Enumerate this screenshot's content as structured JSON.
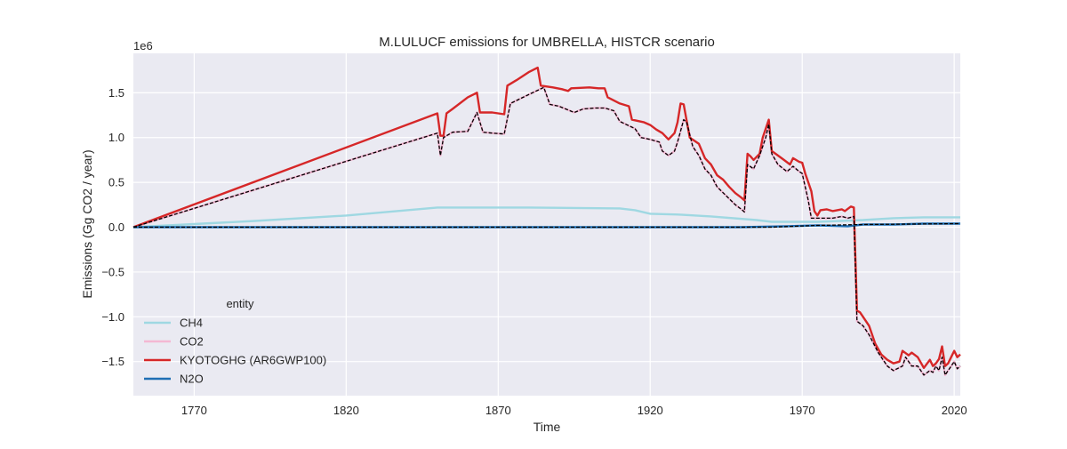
{
  "chart_data": {
    "type": "line",
    "title": "M.LULUCF emissions for UMBRELLA, HISTCR scenario",
    "xlabel": "Time",
    "ylabel": "Emissions (Gg CO2 / year)",
    "y_offset_label": "1e6",
    "y_scale": 1000000,
    "xlim": [
      1750,
      2022
    ],
    "ylim": [
      -1.88,
      1.94
    ],
    "x_ticks": [
      1770,
      1820,
      1870,
      1920,
      1970,
      2020
    ],
    "y_ticks": [
      -1.5,
      -1.0,
      -0.5,
      0.0,
      0.5,
      1.0,
      1.5
    ],
    "y_tick_labels": [
      "−1.5",
      "−1.0",
      "−0.5",
      "0.0",
      "0.5",
      "1.0",
      "1.5"
    ],
    "grid": true,
    "legend": {
      "title": "entity",
      "placement": "lower-left"
    },
    "series": [
      {
        "name": "CH4",
        "color": "#9fd8e2",
        "style": "solid",
        "points": [
          [
            1750,
            0.0
          ],
          [
            1790,
            0.07
          ],
          [
            1820,
            0.13
          ],
          [
            1850,
            0.22
          ],
          [
            1880,
            0.22
          ],
          [
            1910,
            0.21
          ],
          [
            1915,
            0.19
          ],
          [
            1920,
            0.15
          ],
          [
            1930,
            0.14
          ],
          [
            1940,
            0.12
          ],
          [
            1955,
            0.08
          ],
          [
            1960,
            0.06
          ],
          [
            1975,
            0.06
          ],
          [
            1990,
            0.08
          ],
          [
            2000,
            0.1
          ],
          [
            2010,
            0.11
          ],
          [
            2022,
            0.11
          ]
        ]
      },
      {
        "name": "CO2",
        "color": "#f4b8d3",
        "style": "solid",
        "points": [
          [
            1750,
            0.0
          ],
          [
            1850,
            1.05
          ],
          [
            1851,
            0.8
          ],
          [
            1852,
            1.0
          ],
          [
            1855,
            1.06
          ],
          [
            1860,
            1.07
          ],
          [
            1863,
            1.28
          ],
          [
            1865,
            1.06
          ],
          [
            1868,
            1.05
          ],
          [
            1872,
            1.04
          ],
          [
            1874,
            1.38
          ],
          [
            1880,
            1.48
          ],
          [
            1885,
            1.56
          ],
          [
            1887,
            1.37
          ],
          [
            1890,
            1.35
          ],
          [
            1895,
            1.28
          ],
          [
            1898,
            1.32
          ],
          [
            1902,
            1.33
          ],
          [
            1905,
            1.33
          ],
          [
            1908,
            1.3
          ],
          [
            1910,
            1.18
          ],
          [
            1915,
            1.1
          ],
          [
            1917,
            1.0
          ],
          [
            1920,
            0.98
          ],
          [
            1923,
            0.95
          ],
          [
            1924,
            0.85
          ],
          [
            1926,
            0.8
          ],
          [
            1928,
            0.85
          ],
          [
            1929,
            0.95
          ],
          [
            1931,
            1.2
          ],
          [
            1932,
            1.17
          ],
          [
            1934,
            0.9
          ],
          [
            1936,
            0.8
          ],
          [
            1938,
            0.65
          ],
          [
            1940,
            0.58
          ],
          [
            1942,
            0.45
          ],
          [
            1945,
            0.35
          ],
          [
            1948,
            0.25
          ],
          [
            1950,
            0.2
          ],
          [
            1951,
            0.17
          ],
          [
            1952,
            0.7
          ],
          [
            1954,
            0.65
          ],
          [
            1956,
            0.8
          ],
          [
            1958,
            1.0
          ],
          [
            1959,
            1.15
          ],
          [
            1960,
            0.82
          ],
          [
            1962,
            0.7
          ],
          [
            1965,
            0.62
          ],
          [
            1967,
            0.68
          ],
          [
            1969,
            0.62
          ],
          [
            1970,
            0.6
          ],
          [
            1972,
            0.3
          ],
          [
            1973,
            0.1
          ],
          [
            1975,
            0.1
          ],
          [
            1978,
            0.1
          ],
          [
            1980,
            0.1
          ],
          [
            1983,
            0.12
          ],
          [
            1985,
            0.1
          ],
          [
            1987,
            0.12
          ],
          [
            1988,
            -1.05
          ],
          [
            1990,
            -1.1
          ],
          [
            1992,
            -1.2
          ],
          [
            1995,
            -1.4
          ],
          [
            1998,
            -1.55
          ],
          [
            2000,
            -1.6
          ],
          [
            2003,
            -1.55
          ],
          [
            2004,
            -1.45
          ],
          [
            2006,
            -1.55
          ],
          [
            2008,
            -1.55
          ],
          [
            2010,
            -1.65
          ],
          [
            2012,
            -1.6
          ],
          [
            2013,
            -1.62
          ],
          [
            2014,
            -1.55
          ],
          [
            2015,
            -1.6
          ],
          [
            2016,
            -1.45
          ],
          [
            2017,
            -1.65
          ],
          [
            2018,
            -1.6
          ],
          [
            2020,
            -1.5
          ],
          [
            2021,
            -1.58
          ],
          [
            2022,
            -1.55
          ]
        ]
      },
      {
        "name": "KYOTOGHG (AR6GWP100)",
        "color": "#d62728",
        "style": "solid",
        "points": [
          [
            1750,
            0.0
          ],
          [
            1850,
            1.27
          ],
          [
            1851,
            1.02
          ],
          [
            1852,
            1.02
          ],
          [
            1853,
            1.27
          ],
          [
            1855,
            1.32
          ],
          [
            1860,
            1.45
          ],
          [
            1863,
            1.5
          ],
          [
            1864,
            1.28
          ],
          [
            1868,
            1.28
          ],
          [
            1872,
            1.26
          ],
          [
            1873,
            1.58
          ],
          [
            1876,
            1.64
          ],
          [
            1880,
            1.73
          ],
          [
            1883,
            1.78
          ],
          [
            1884,
            1.58
          ],
          [
            1888,
            1.56
          ],
          [
            1891,
            1.54
          ],
          [
            1893,
            1.52
          ],
          [
            1894,
            1.55
          ],
          [
            1900,
            1.56
          ],
          [
            1903,
            1.55
          ],
          [
            1905,
            1.55
          ],
          [
            1906,
            1.45
          ],
          [
            1910,
            1.38
          ],
          [
            1913,
            1.35
          ],
          [
            1914,
            1.2
          ],
          [
            1918,
            1.17
          ],
          [
            1920,
            1.14
          ],
          [
            1922,
            1.09
          ],
          [
            1924,
            1.05
          ],
          [
            1926,
            0.98
          ],
          [
            1928,
            1.05
          ],
          [
            1929,
            1.17
          ],
          [
            1930,
            1.38
          ],
          [
            1931,
            1.37
          ],
          [
            1933,
            1.0
          ],
          [
            1936,
            0.93
          ],
          [
            1938,
            0.77
          ],
          [
            1940,
            0.7
          ],
          [
            1942,
            0.58
          ],
          [
            1944,
            0.53
          ],
          [
            1946,
            0.45
          ],
          [
            1948,
            0.38
          ],
          [
            1950,
            0.33
          ],
          [
            1951,
            0.3
          ],
          [
            1952,
            0.82
          ],
          [
            1953,
            0.79
          ],
          [
            1954,
            0.75
          ],
          [
            1956,
            0.82
          ],
          [
            1957,
            1.0
          ],
          [
            1959,
            1.2
          ],
          [
            1960,
            0.85
          ],
          [
            1962,
            0.8
          ],
          [
            1964,
            0.75
          ],
          [
            1966,
            0.7
          ],
          [
            1967,
            0.77
          ],
          [
            1969,
            0.73
          ],
          [
            1970,
            0.72
          ],
          [
            1971,
            0.6
          ],
          [
            1973,
            0.4
          ],
          [
            1974,
            0.18
          ],
          [
            1975,
            0.13
          ],
          [
            1976,
            0.19
          ],
          [
            1978,
            0.2
          ],
          [
            1980,
            0.18
          ],
          [
            1983,
            0.2
          ],
          [
            1984,
            0.18
          ],
          [
            1986,
            0.23
          ],
          [
            1987,
            0.22
          ],
          [
            1988,
            -0.93
          ],
          [
            1989,
            -0.95
          ],
          [
            1990,
            -1.0
          ],
          [
            1992,
            -1.1
          ],
          [
            1994,
            -1.3
          ],
          [
            1996,
            -1.42
          ],
          [
            1998,
            -1.48
          ],
          [
            2000,
            -1.52
          ],
          [
            2002,
            -1.5
          ],
          [
            2003,
            -1.38
          ],
          [
            2005,
            -1.43
          ],
          [
            2006,
            -1.4
          ],
          [
            2008,
            -1.45
          ],
          [
            2010,
            -1.57
          ],
          [
            2012,
            -1.48
          ],
          [
            2013,
            -1.55
          ],
          [
            2014,
            -1.52
          ],
          [
            2015,
            -1.47
          ],
          [
            2016,
            -1.33
          ],
          [
            2017,
            -1.55
          ],
          [
            2018,
            -1.52
          ],
          [
            2019,
            -1.45
          ],
          [
            2020,
            -1.38
          ],
          [
            2021,
            -1.45
          ],
          [
            2022,
            -1.42
          ]
        ]
      },
      {
        "name": "N2O",
        "color": "#1f6fb4",
        "style": "solid",
        "points": [
          [
            1750,
            0.0
          ],
          [
            1900,
            0.0
          ],
          [
            1950,
            0.0
          ],
          [
            1965,
            0.01
          ],
          [
            1975,
            0.02
          ],
          [
            1985,
            0.01
          ],
          [
            1990,
            0.03
          ],
          [
            2000,
            0.03
          ],
          [
            2010,
            0.04
          ],
          [
            2022,
            0.04
          ]
        ]
      },
      {
        "name": "",
        "color": "#000000",
        "style": "dashed",
        "points": [
          [
            1750,
            0.0
          ],
          [
            1850,
            1.05
          ],
          [
            1851,
            0.8
          ],
          [
            1852,
            1.0
          ],
          [
            1855,
            1.06
          ],
          [
            1860,
            1.07
          ],
          [
            1863,
            1.28
          ],
          [
            1865,
            1.06
          ],
          [
            1868,
            1.05
          ],
          [
            1872,
            1.04
          ],
          [
            1874,
            1.38
          ],
          [
            1880,
            1.48
          ],
          [
            1885,
            1.56
          ],
          [
            1887,
            1.37
          ],
          [
            1890,
            1.35
          ],
          [
            1895,
            1.28
          ],
          [
            1898,
            1.32
          ],
          [
            1902,
            1.33
          ],
          [
            1905,
            1.33
          ],
          [
            1908,
            1.3
          ],
          [
            1910,
            1.18
          ],
          [
            1915,
            1.1
          ],
          [
            1917,
            1.0
          ],
          [
            1920,
            0.98
          ],
          [
            1923,
            0.95
          ],
          [
            1924,
            0.85
          ],
          [
            1926,
            0.8
          ],
          [
            1928,
            0.85
          ],
          [
            1929,
            0.95
          ],
          [
            1931,
            1.2
          ],
          [
            1932,
            1.17
          ],
          [
            1934,
            0.9
          ],
          [
            1936,
            0.8
          ],
          [
            1938,
            0.65
          ],
          [
            1940,
            0.58
          ],
          [
            1942,
            0.45
          ],
          [
            1945,
            0.35
          ],
          [
            1948,
            0.25
          ],
          [
            1950,
            0.2
          ],
          [
            1951,
            0.17
          ],
          [
            1952,
            0.7
          ],
          [
            1954,
            0.65
          ],
          [
            1956,
            0.8
          ],
          [
            1958,
            1.0
          ],
          [
            1959,
            1.15
          ],
          [
            1960,
            0.82
          ],
          [
            1962,
            0.7
          ],
          [
            1965,
            0.62
          ],
          [
            1967,
            0.68
          ],
          [
            1969,
            0.62
          ],
          [
            1970,
            0.6
          ],
          [
            1972,
            0.3
          ],
          [
            1973,
            0.1
          ],
          [
            1975,
            0.1
          ],
          [
            1978,
            0.1
          ],
          [
            1980,
            0.1
          ],
          [
            1983,
            0.12
          ],
          [
            1985,
            0.1
          ],
          [
            1987,
            0.12
          ],
          [
            1988,
            -1.05
          ],
          [
            1990,
            -1.1
          ],
          [
            1992,
            -1.2
          ],
          [
            1995,
            -1.4
          ],
          [
            1998,
            -1.55
          ],
          [
            2000,
            -1.6
          ],
          [
            2003,
            -1.55
          ],
          [
            2004,
            -1.45
          ],
          [
            2006,
            -1.55
          ],
          [
            2008,
            -1.55
          ],
          [
            2010,
            -1.65
          ],
          [
            2012,
            -1.6
          ],
          [
            2013,
            -1.62
          ],
          [
            2014,
            -1.55
          ],
          [
            2015,
            -1.6
          ],
          [
            2016,
            -1.45
          ],
          [
            2017,
            -1.65
          ],
          [
            2018,
            -1.6
          ],
          [
            2020,
            -1.5
          ],
          [
            2021,
            -1.58
          ],
          [
            2022,
            -1.55
          ]
        ]
      },
      {
        "name": "",
        "color": "#000000",
        "style": "dashed",
        "points": [
          [
            1750,
            0.0
          ],
          [
            1850,
            0.0
          ],
          [
            1960,
            0.0
          ],
          [
            1975,
            0.02
          ],
          [
            1990,
            0.03
          ],
          [
            2022,
            0.04
          ]
        ]
      }
    ]
  }
}
